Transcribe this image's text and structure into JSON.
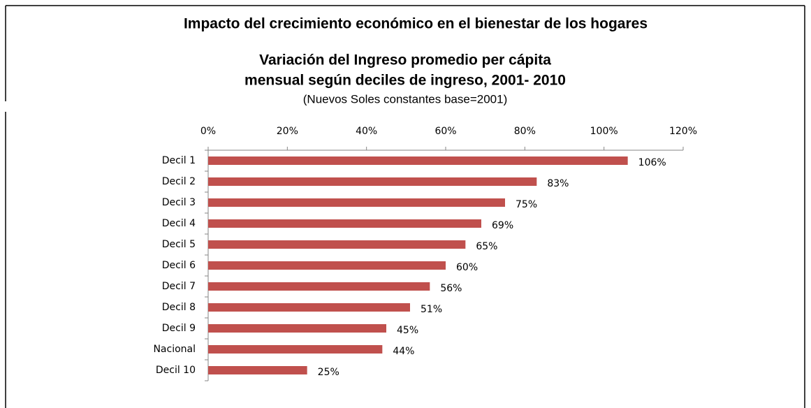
{
  "chart_data": {
    "type": "bar",
    "orientation": "horizontal",
    "header": "Impacto del crecimiento económico en el bienestar de los hogares",
    "title": [
      "Variación del Ingreso promedio per cápita",
      "mensual según deciles de ingreso, 2001- 2010"
    ],
    "subtitle": "(Nuevos Soles constantes base=2001)",
    "categories": [
      "Decil 1",
      "Decil 2",
      "Decil 3",
      "Decil 4",
      "Decil 5",
      "Decil 6",
      "Decil 7",
      "Decil 8",
      "Decil 9",
      "Nacional",
      "Decil 10"
    ],
    "values": [
      106,
      83,
      75,
      69,
      65,
      60,
      56,
      51,
      45,
      44,
      25
    ],
    "value_labels": [
      "106%",
      "83%",
      "75%",
      "69%",
      "65%",
      "60%",
      "56%",
      "51%",
      "45%",
      "44%",
      "25%"
    ],
    "color": "#c0504d",
    "xlim": [
      0,
      120
    ],
    "xticks": [
      {
        "value": 0,
        "label": "0%"
      },
      {
        "value": 20,
        "label": "20%"
      },
      {
        "value": 40,
        "label": "40%"
      },
      {
        "value": 60,
        "label": "60%"
      },
      {
        "value": 80,
        "label": "80%"
      },
      {
        "value": 100,
        "label": "100%"
      },
      {
        "value": 120,
        "label": "120%"
      }
    ],
    "grid": false
  }
}
